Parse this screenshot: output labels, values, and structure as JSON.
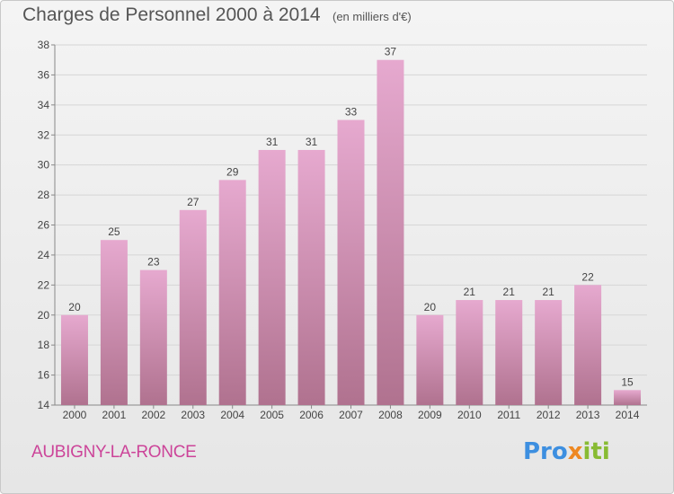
{
  "header": {
    "title": "Charges de Personnel 2000 à 2014",
    "subtitle": "(en milliers d'€)"
  },
  "footer": {
    "commune": "AUBIGNY-LA-RONCE",
    "logo_text": "Proxiti",
    "logo_parts": [
      "Pro",
      "x",
      "iti"
    ]
  },
  "colors": {
    "bar_top": "#e6a9cf",
    "bar_bottom": "#b0728f",
    "title": "#555555",
    "commune": "#cc4499"
  },
  "chart_data": {
    "type": "bar",
    "title": "Charges de Personnel 2000 à 2014",
    "subtitle": "(en milliers d'€)",
    "categories": [
      "2000",
      "2001",
      "2002",
      "2003",
      "2004",
      "2005",
      "2006",
      "2007",
      "2008",
      "2009",
      "2010",
      "2011",
      "2012",
      "2013",
      "2014"
    ],
    "values": [
      20,
      25,
      23,
      27,
      29,
      31,
      31,
      33,
      37,
      20,
      21,
      21,
      21,
      22,
      15
    ],
    "ylim": [
      14,
      38
    ],
    "yticks": [
      14,
      16,
      18,
      20,
      22,
      24,
      26,
      28,
      30,
      32,
      34,
      36,
      38
    ],
    "grid": "horizontal",
    "data_labels": true
  }
}
